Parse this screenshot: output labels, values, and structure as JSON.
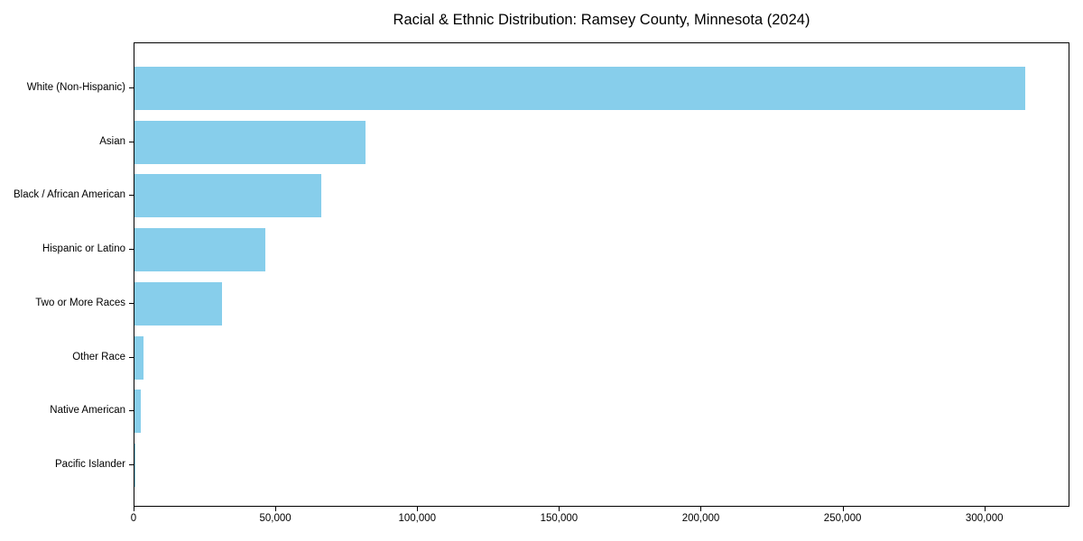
{
  "chart_data": {
    "type": "bar",
    "orientation": "horizontal",
    "title": "Racial & Ethnic Distribution: Ramsey County, Minnesota (2024)",
    "categories": [
      "White (Non-Hispanic)",
      "Asian",
      "Black / African American",
      "Hispanic or Latino",
      "Two or More Races",
      "Other Race",
      "Native American",
      "Pacific Islander"
    ],
    "values": [
      314000,
      81500,
      66000,
      46000,
      31000,
      3200,
      2200,
      400
    ],
    "xlabel": "",
    "ylabel": "",
    "xlim": [
      0,
      330000
    ],
    "xticks": [
      {
        "value": 0,
        "label": "0"
      },
      {
        "value": 50000,
        "label": "50,000"
      },
      {
        "value": 100000,
        "label": "100,000"
      },
      {
        "value": 150000,
        "label": "150,000"
      },
      {
        "value": 200000,
        "label": "200,000"
      },
      {
        "value": 250000,
        "label": "250,000"
      },
      {
        "value": 300000,
        "label": "300,000"
      }
    ],
    "bar_color": "#87CEEB",
    "frame_color": "#000000",
    "background_color": "#ffffff",
    "grid": false,
    "legend": null,
    "data_labels": false
  }
}
